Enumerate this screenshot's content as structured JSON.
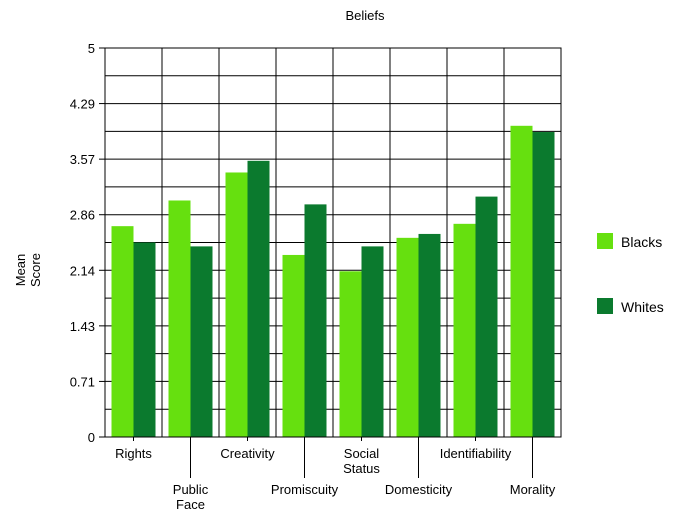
{
  "chart_data": {
    "type": "bar",
    "title": "Beliefs",
    "ylabel": "Mean Score",
    "xlabel": "",
    "ylim": [
      0,
      5
    ],
    "yticks": [
      "0",
      "0.71",
      "1.43",
      "2.14",
      "2.86",
      "3.57",
      "4.29",
      "5"
    ],
    "categories": [
      [
        "Rights"
      ],
      [
        "Public",
        "Face"
      ],
      [
        "Creativity"
      ],
      [
        "Promiscuity"
      ],
      [
        "Social",
        "Status"
      ],
      [
        "Domesticity"
      ],
      [
        "Identifiability"
      ],
      [
        "Morality"
      ]
    ],
    "series": [
      {
        "name": "Blacks",
        "color": "#66e00f",
        "values": [
          2.71,
          3.04,
          3.4,
          2.34,
          2.13,
          2.56,
          2.74,
          4.0
        ]
      },
      {
        "name": "Whites",
        "color": "#0b7a2e",
        "values": [
          2.5,
          2.45,
          3.55,
          2.99,
          2.45,
          2.61,
          3.09,
          3.92
        ]
      }
    ],
    "legend_position": "right",
    "grid": true
  }
}
